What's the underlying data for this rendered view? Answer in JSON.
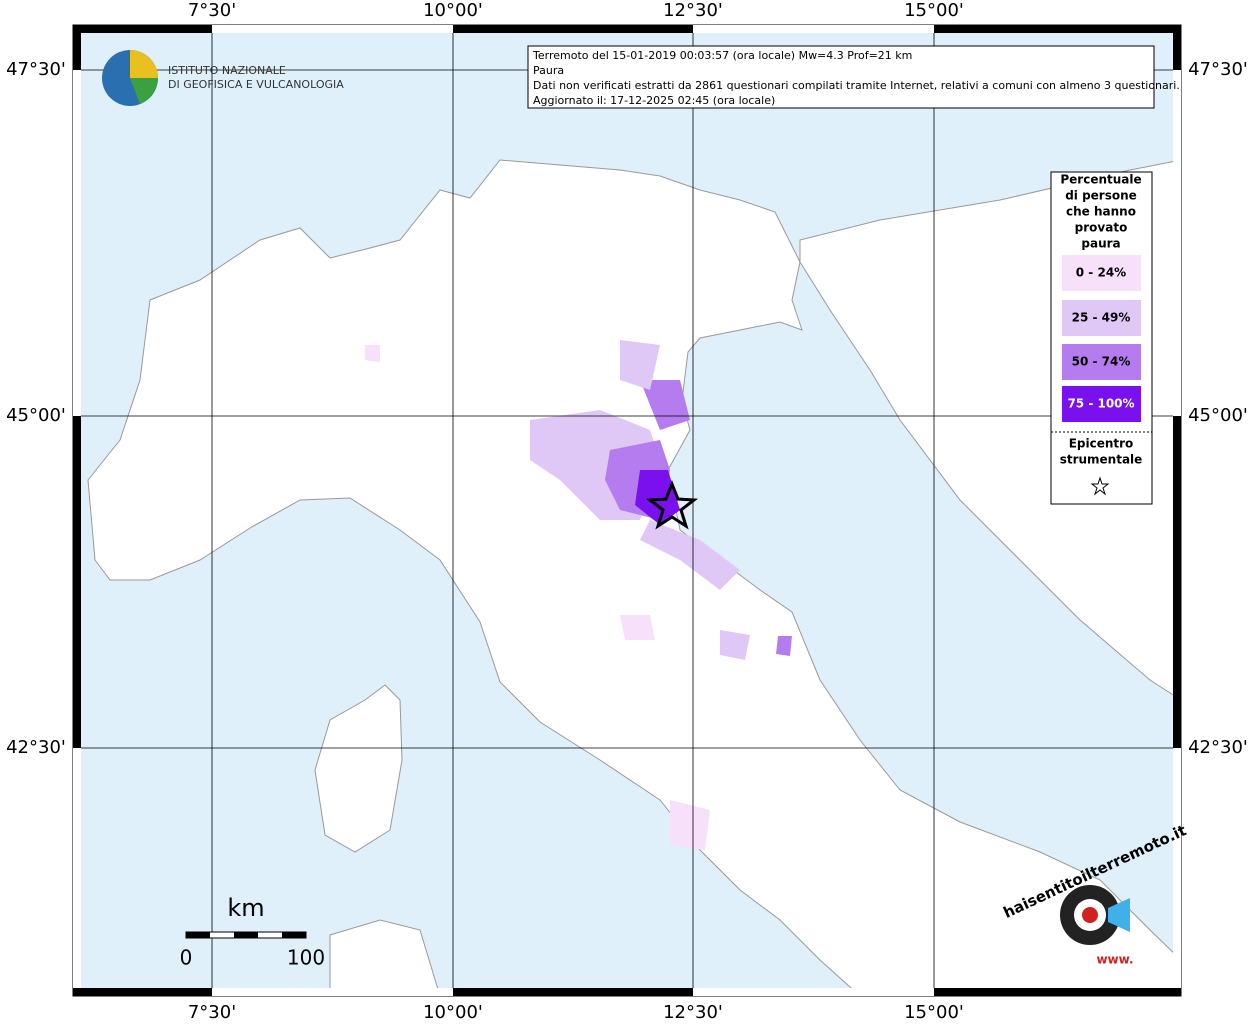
{
  "map": {
    "lon_labels": [
      "7°30'",
      "10°00'",
      "12°30'",
      "15°00'"
    ],
    "lat_labels": [
      "47°30'",
      "45°00'",
      "42°30'"
    ]
  },
  "info": {
    "lines": [
      "Terremoto del 15-01-2019 00:03:57 (ora locale) Mw=4.3 Prof=21 km",
      "Paura",
      "Dati non verificati estratti da 2861 questionari compilati tramite Internet, relativi a comuni con almeno 3 questionari.",
      "Aggiornato il: 17-12-2025 02:45 (ora locale)"
    ]
  },
  "logo": {
    "lines": [
      "ISTITUTO NAZIONALE",
      "DI GEOFISICA E VULCANOLOGIA"
    ]
  },
  "legend": {
    "title_lines": [
      "Percentuale",
      "di persone",
      "che hanno",
      "provato",
      "paura"
    ],
    "classes": [
      {
        "label": "0 - 24%",
        "color": "#f6e0fa"
      },
      {
        "label": "25 - 49%",
        "color": "#e0c8f6"
      },
      {
        "label": "50 - 74%",
        "color": "#b57cf0"
      },
      {
        "label": "75 - 100%",
        "color": "#7a10ee"
      }
    ],
    "epicenter_lines": [
      "Epicentro",
      "strumentale"
    ]
  },
  "scale": {
    "unit": "km",
    "labels": [
      "0",
      "100"
    ]
  },
  "brand": {
    "site": "haisentitoilterremoto.it",
    "www": "www."
  }
}
